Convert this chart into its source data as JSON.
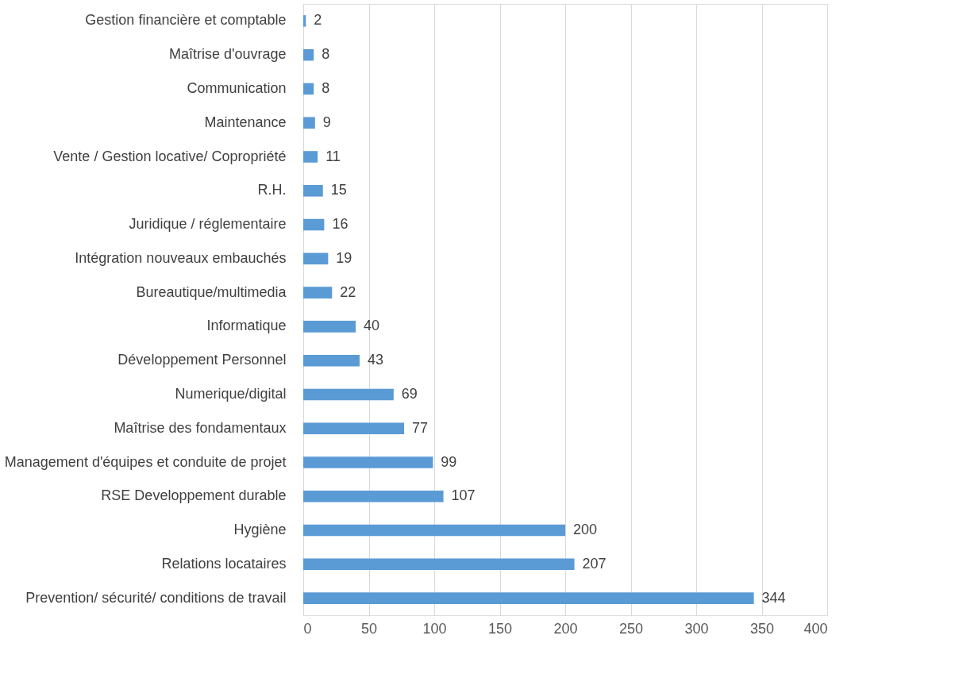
{
  "chart_data": {
    "type": "bar",
    "orientation": "horizontal",
    "categories": [
      "Gestion financière et comptable",
      "Maîtrise d'ouvrage",
      "Communication",
      "Maintenance",
      "Vente / Gestion locative/ Copropriété",
      "R.H.",
      "Juridique / réglementaire",
      "Intégration nouveaux embauchés",
      "Bureautique/multimedia",
      "Informatique",
      "Développement Personnel",
      "Numerique/digital",
      "Maîtrise des fondamentaux",
      "Management d'équipes et conduite de projet",
      "RSE Developpement durable",
      "Hygiène",
      "Relations locataires",
      "Prevention/ sécurité/ conditions de travail"
    ],
    "values": [
      2,
      8,
      8,
      9,
      11,
      15,
      16,
      19,
      22,
      40,
      43,
      69,
      77,
      99,
      107,
      200,
      207,
      344
    ],
    "color": "#5b9bd5",
    "xlim": [
      0,
      400
    ],
    "xticks": [
      0,
      50,
      100,
      150,
      200,
      250,
      300,
      350,
      400
    ],
    "grid": "x",
    "data_labels": true
  }
}
